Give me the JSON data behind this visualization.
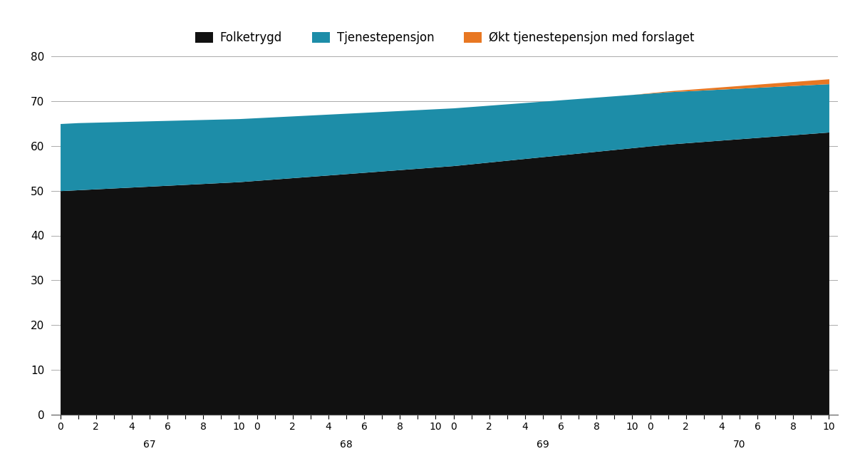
{
  "legend_labels": [
    "Folketrygd",
    "Tjenestepensjon",
    "Økt tjenestepensjon med forslaget"
  ],
  "legend_colors": [
    "#111111",
    "#1d8da8",
    "#e87722"
  ],
  "background_color": "#ffffff",
  "ylim": [
    0,
    80
  ],
  "yticks": [
    0,
    10,
    20,
    30,
    40,
    50,
    60,
    70,
    80
  ],
  "years": [
    67,
    68,
    69,
    70
  ],
  "n_per_group": 11,
  "n_groups": 4,
  "folketrygd": [
    50.0,
    50.2,
    50.4,
    50.6,
    50.8,
    51.0,
    51.2,
    51.4,
    51.6,
    51.8,
    52.0,
    52.3,
    52.6,
    52.9,
    53.2,
    53.5,
    53.8,
    54.1,
    54.4,
    54.7,
    55.0,
    55.3,
    55.6,
    56.0,
    56.4,
    56.8,
    57.2,
    57.6,
    58.0,
    58.4,
    58.8,
    59.2,
    59.6,
    60.0,
    60.4,
    60.7,
    61.0,
    61.3,
    61.6,
    61.9,
    62.2,
    62.5,
    62.8,
    63.1
  ],
  "tjenestepensjon": [
    15.0,
    15.0,
    14.9,
    14.8,
    14.7,
    14.6,
    14.5,
    14.4,
    14.3,
    14.2,
    14.1,
    14.0,
    13.9,
    13.8,
    13.7,
    13.6,
    13.5,
    13.4,
    13.3,
    13.2,
    13.1,
    13.0,
    12.9,
    12.8,
    12.7,
    12.6,
    12.5,
    12.4,
    12.3,
    12.2,
    12.1,
    12.0,
    11.9,
    11.8,
    11.7,
    11.6,
    11.5,
    11.4,
    11.3,
    11.2,
    11.1,
    11.0,
    10.9,
    10.8
  ],
  "okt_tjenestepensjon": [
    0.0,
    0.0,
    0.0,
    0.0,
    0.0,
    0.0,
    0.0,
    0.0,
    0.0,
    0.0,
    0.0,
    0.0,
    0.0,
    0.0,
    0.0,
    0.0,
    0.0,
    0.0,
    0.0,
    0.0,
    0.0,
    0.0,
    0.0,
    0.0,
    0.0,
    0.0,
    0.0,
    0.0,
    0.0,
    0.0,
    0.0,
    0.0,
    0.0,
    0.1,
    0.2,
    0.3,
    0.4,
    0.5,
    0.6,
    0.7,
    0.8,
    0.9,
    1.0,
    1.1
  ],
  "grid_color": "#aaaaaa",
  "spine_color": "#555555"
}
